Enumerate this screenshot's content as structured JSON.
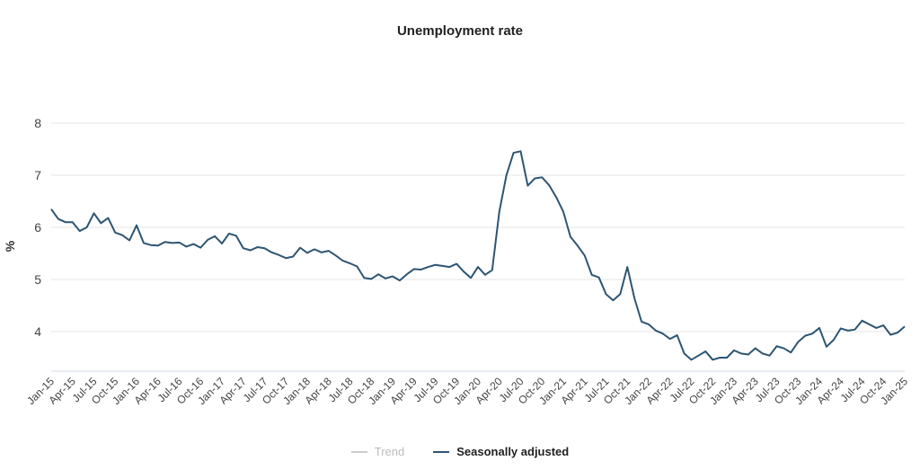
{
  "chart_data": {
    "type": "line",
    "title": "Unemployment rate",
    "ylabel": "%",
    "xlabel": "",
    "ylim": [
      3.2,
      8
    ],
    "yticks": [
      4,
      5,
      6,
      7,
      8
    ],
    "x_tick_labels": [
      "Jan-15",
      "Apr-15",
      "Jul-15",
      "Oct-15",
      "Jan-16",
      "Apr-16",
      "Jul-16",
      "Oct-16",
      "Jan-17",
      "Apr-17",
      "Jul-17",
      "Oct-17",
      "Jan-18",
      "Apr-18",
      "Jul-18",
      "Oct-18",
      "Jan-19",
      "Apr-19",
      "Jul-19",
      "Oct-19",
      "Jan-20",
      "Apr-20",
      "Jul-20",
      "Oct-20",
      "Jan-21",
      "Apr-21",
      "Jul-21",
      "Oct-21",
      "Jan-22",
      "Apr-22",
      "Jul-22",
      "Oct-22",
      "Jan-23",
      "Apr-23",
      "Jul-23",
      "Oct-23",
      "Jan-24",
      "Apr-24",
      "Jul-24",
      "Oct-24",
      "Jan-25"
    ],
    "grid": true,
    "legend_position": "bottom",
    "start_month": "Jan-15",
    "series": [
      {
        "name": "Trend",
        "color": "#cccccc",
        "values": []
      },
      {
        "name": "Seasonally adjusted",
        "color": "#2d5573",
        "values": [
          6.35,
          6.16,
          6.1,
          6.1,
          5.93,
          6.0,
          6.27,
          6.08,
          6.18,
          5.9,
          5.85,
          5.75,
          6.04,
          5.7,
          5.66,
          5.65,
          5.72,
          5.7,
          5.71,
          5.63,
          5.68,
          5.61,
          5.76,
          5.83,
          5.69,
          5.88,
          5.84,
          5.6,
          5.56,
          5.62,
          5.6,
          5.52,
          5.47,
          5.41,
          5.44,
          5.61,
          5.51,
          5.58,
          5.52,
          5.55,
          5.46,
          5.36,
          5.31,
          5.25,
          5.03,
          5.01,
          5.1,
          5.02,
          5.06,
          4.98,
          5.1,
          5.2,
          5.19,
          5.24,
          5.28,
          5.26,
          5.24,
          5.3,
          5.15,
          5.03,
          5.24,
          5.09,
          5.18,
          6.3,
          7.0,
          7.43,
          7.46,
          6.8,
          6.94,
          6.96,
          6.81,
          6.58,
          6.3,
          5.82,
          5.65,
          5.46,
          5.09,
          5.04,
          4.72,
          4.6,
          4.72,
          5.24,
          4.64,
          4.19,
          4.14,
          4.02,
          3.96,
          3.86,
          3.93,
          3.58,
          3.46,
          3.54,
          3.62,
          3.46,
          3.5,
          3.5,
          3.64,
          3.58,
          3.56,
          3.68,
          3.58,
          3.54,
          3.72,
          3.68,
          3.6,
          3.8,
          3.92,
          3.96,
          4.07,
          3.71,
          3.84,
          4.06,
          4.02,
          4.04,
          4.21,
          4.14,
          4.07,
          4.12,
          3.94,
          3.98,
          4.1
        ]
      }
    ]
  }
}
